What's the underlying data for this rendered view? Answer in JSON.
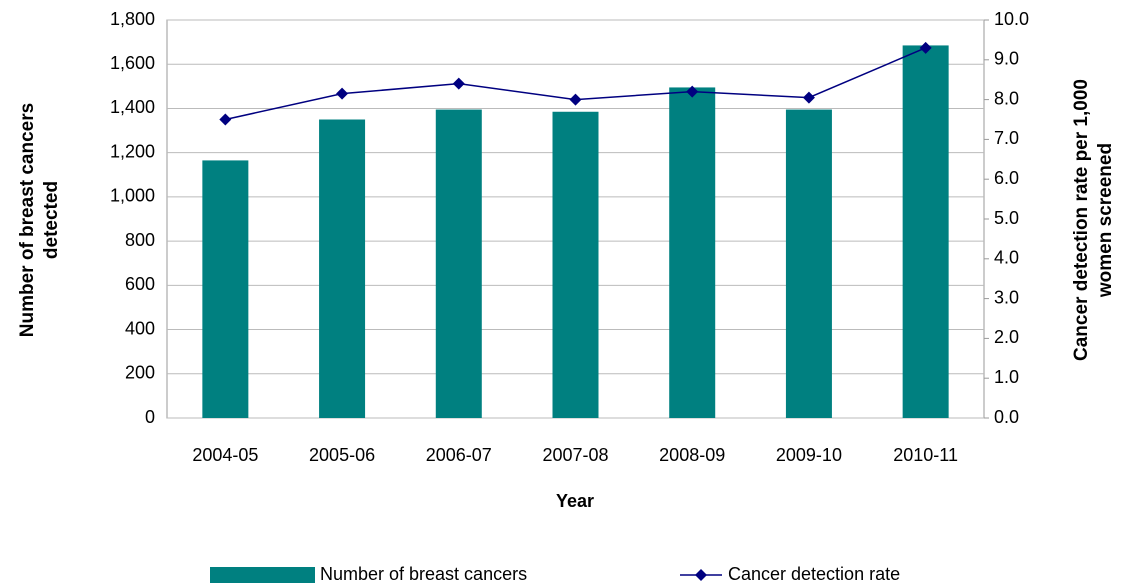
{
  "chart_data": {
    "type": "bar",
    "x_label": "Year",
    "y_label": "Number of breast cancers detected",
    "y2_label": "Cancer detection rate per 1,000 women screened",
    "categories": [
      "2004-05",
      "2005-06",
      "2006-07",
      "2007-08",
      "2008-09",
      "2009-10",
      "2010-11"
    ],
    "series": [
      {
        "name": "Number of breast cancers",
        "type": "bar",
        "color": "#008080",
        "values": [
          1165,
          1350,
          1395,
          1385,
          1495,
          1395,
          1685
        ]
      },
      {
        "name": "Cancer detection rate",
        "type": "line",
        "axis": "y2",
        "color": "#000080",
        "values": [
          7.5,
          8.15,
          8.4,
          8.0,
          8.2,
          8.05,
          9.3
        ]
      }
    ],
    "ylim": [
      0,
      1800
    ],
    "yticks": [
      0,
      200,
      400,
      600,
      800,
      {
        "value": 1000,
        "label": "1,000"
      },
      {
        "value": 1200,
        "label": "1,200"
      },
      {
        "value": 1400,
        "label": "1,400"
      },
      {
        "value": 1600,
        "label": "1,600"
      },
      {
        "value": 1800,
        "label": "1,800"
      }
    ],
    "y2lim": [
      0,
      10
    ],
    "y2ticks": [
      {
        "value": 0,
        "label": "0.0"
      },
      {
        "value": 1,
        "label": "1.0"
      },
      {
        "value": 2,
        "label": "2.0"
      },
      {
        "value": 3,
        "label": "3.0"
      },
      {
        "value": 4,
        "label": "4.0"
      },
      {
        "value": 5,
        "label": "5.0"
      },
      {
        "value": 6,
        "label": "6.0"
      },
      {
        "value": 7,
        "label": "7.0"
      },
      {
        "value": 8,
        "label": "8.0"
      },
      {
        "value": 9,
        "label": "9.0"
      },
      {
        "value": 10,
        "label": "10.0"
      }
    ],
    "grid": true,
    "legend": "bottom"
  }
}
